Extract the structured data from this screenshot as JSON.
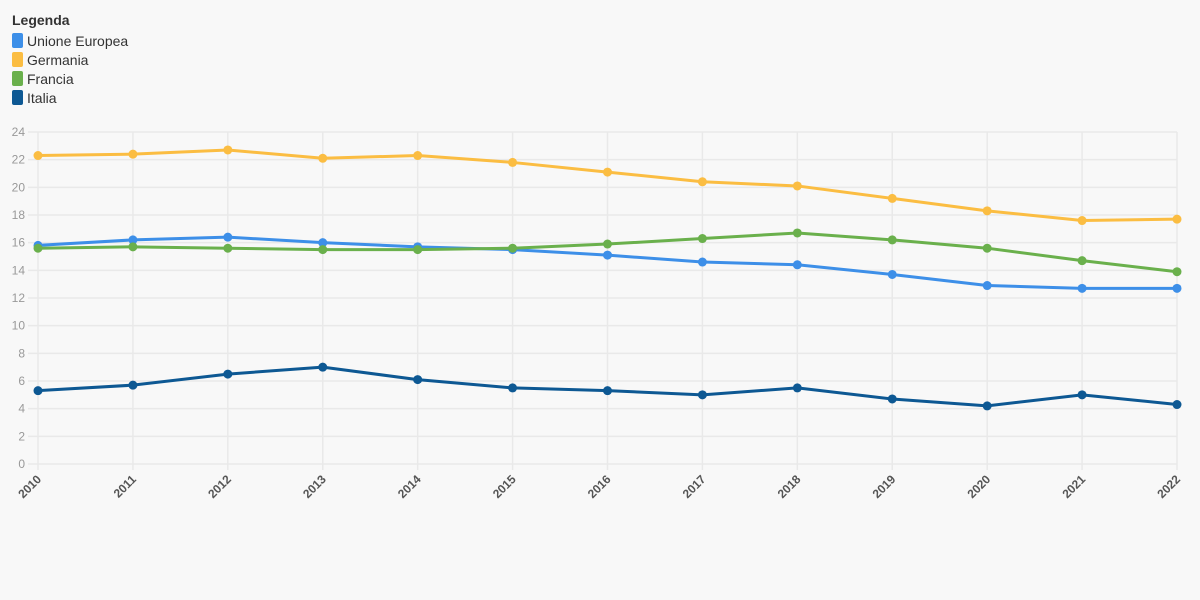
{
  "legend": {
    "title": "Legenda",
    "items": [
      {
        "label": "Unione Europea",
        "color": "#3d8fe8"
      },
      {
        "label": "Germania",
        "color": "#fbbd42"
      },
      {
        "label": "Francia",
        "color": "#6ab04c"
      },
      {
        "label": "Italia",
        "color": "#0d5893"
      }
    ]
  },
  "chart_data": {
    "type": "line",
    "title": "",
    "xlabel": "",
    "ylabel": "",
    "x": [
      "2010",
      "2011",
      "2012",
      "2013",
      "2014",
      "2015",
      "2016",
      "2017",
      "2018",
      "2019",
      "2020",
      "2021",
      "2022"
    ],
    "ylim": [
      0,
      24
    ],
    "yticks": [
      0,
      2,
      4,
      6,
      8,
      10,
      12,
      14,
      16,
      18,
      20,
      22,
      24
    ],
    "grid": true,
    "legend_position": "top-left",
    "series": [
      {
        "name": "Unione Europea",
        "color": "#3d8fe8",
        "values": [
          15.8,
          16.2,
          16.4,
          16.0,
          15.7,
          15.5,
          15.1,
          14.6,
          14.4,
          13.7,
          12.9,
          12.7,
          12.7
        ]
      },
      {
        "name": "Germania",
        "color": "#fbbd42",
        "values": [
          22.3,
          22.4,
          22.7,
          22.1,
          22.3,
          21.8,
          21.1,
          20.4,
          20.1,
          19.2,
          18.3,
          17.6,
          17.7
        ]
      },
      {
        "name": "Francia",
        "color": "#6ab04c",
        "values": [
          15.6,
          15.7,
          15.6,
          15.5,
          15.5,
          15.6,
          15.9,
          16.3,
          16.7,
          16.2,
          15.6,
          14.7,
          13.9
        ]
      },
      {
        "name": "Italia",
        "color": "#0d5893",
        "values": [
          5.3,
          5.7,
          6.5,
          7.0,
          6.1,
          5.5,
          5.3,
          5.0,
          5.5,
          4.7,
          4.2,
          5.0,
          4.3
        ]
      }
    ]
  }
}
